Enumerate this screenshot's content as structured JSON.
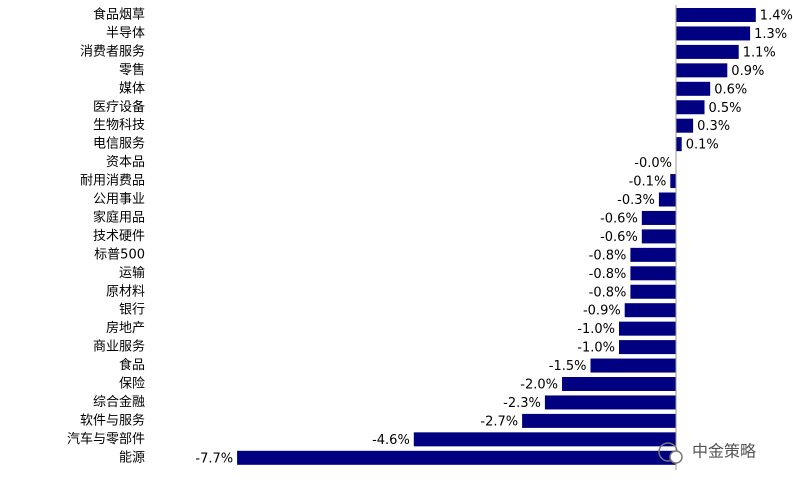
{
  "chart_data": {
    "type": "bar",
    "orientation": "horizontal",
    "categories": [
      "食品烟草",
      "半导体",
      "消费者服务",
      "零售",
      "媒体",
      "医疗设备",
      "生物科技",
      "电信服务",
      "资本品",
      "耐用消费品",
      "公用事业",
      "家庭用品",
      "技术硬件",
      "标普500",
      "运输",
      "原材料",
      "银行",
      "房地产",
      "商业服务",
      "食品",
      "保险",
      "综合金融",
      "软件与服务",
      "汽车与零部件",
      "能源"
    ],
    "values": [
      1.4,
      1.3,
      1.1,
      0.9,
      0.6,
      0.5,
      0.3,
      0.1,
      -0.0,
      -0.1,
      -0.3,
      -0.6,
      -0.6,
      -0.8,
      -0.8,
      -0.8,
      -0.9,
      -1.0,
      -1.0,
      -1.5,
      -2.0,
      -2.3,
      -2.7,
      -4.6,
      -7.7
    ],
    "value_labels": [
      "1.4%",
      "1.3%",
      "1.1%",
      "0.9%",
      "0.6%",
      "0.5%",
      "0.3%",
      "0.1%",
      "-0.0%",
      "-0.1%",
      "-0.3%",
      "-0.6%",
      "-0.6%",
      "-0.8%",
      "-0.8%",
      "-0.8%",
      "-0.9%",
      "-1.0%",
      "-1.0%",
      "-1.5%",
      "-2.0%",
      "-2.3%",
      "-2.7%",
      "-4.6%",
      "-7.7%"
    ],
    "color": "#000080",
    "negative_label_color": "#e02020",
    "xlim": [
      -8,
      2
    ]
  },
  "watermark": "中金策略"
}
